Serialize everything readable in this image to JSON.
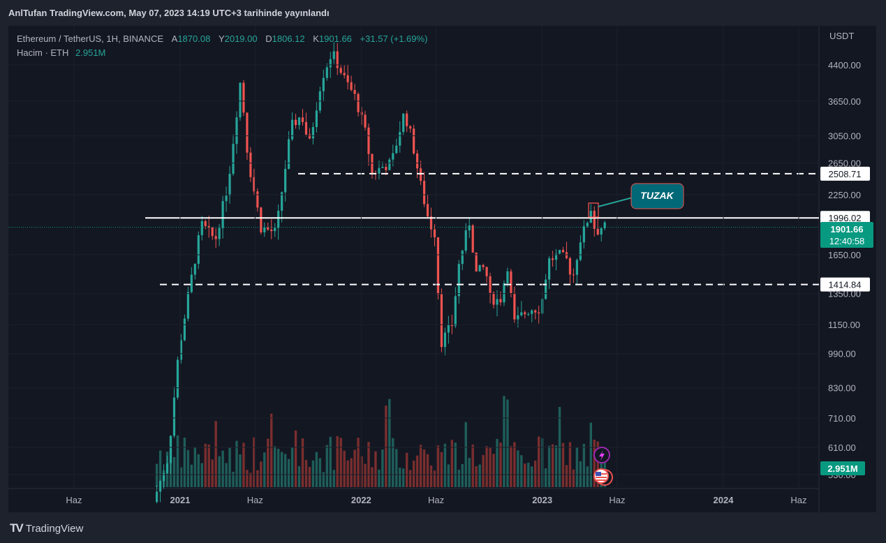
{
  "header": {
    "publish_text": "AnlTufan TradingView.com, May 07, 2023 14:19 UTC+3 tarihinde yayınlandı"
  },
  "legend": {
    "symbol": "Ethereum / TetherUS, 1H, BINANCE",
    "open_label": "A",
    "open": "1870.08",
    "high_label": "Y",
    "high": "2019.00",
    "low_label": "D",
    "low": "1806.12",
    "close_label": "K",
    "close": "1901.66",
    "change": "+31.57 (+1.69%)",
    "volume_label": "Hacim · ETH",
    "volume": "2.951M"
  },
  "chart_data": {
    "type": "candlestick",
    "currency": "USDT",
    "y_scale": "log",
    "y_ticks": [
      "4400.00",
      "3650.00",
      "3050.00",
      "2650.00",
      "2250.00",
      "1650.00",
      "1350.00",
      "1150.00",
      "990.00",
      "830.00",
      "710.00",
      "610.00",
      "530.00"
    ],
    "x_ticks": [
      "Haz",
      "2021",
      "Haz",
      "2022",
      "Haz",
      "2023",
      "Haz",
      "2024",
      "Haz"
    ],
    "levels": [
      {
        "price": 2508.71,
        "label": "2508.71",
        "style": "dashed"
      },
      {
        "price": 1996.02,
        "label": "1996.02",
        "style": "solid"
      },
      {
        "price": 1414.84,
        "label": "1414.84",
        "style": "dashed"
      }
    ],
    "last_price": {
      "label": "1901.66",
      "countdown": "12:40:58"
    },
    "volume_badge": "2.951M",
    "annotation": "TUZAK",
    "path_points": [
      {
        "date": "2020-11-15",
        "price": 460
      },
      {
        "date": "2020-12-15",
        "price": 580
      },
      {
        "date": "2021-01-05",
        "price": 1000
      },
      {
        "date": "2021-01-25",
        "price": 1350
      },
      {
        "date": "2021-02-20",
        "price": 1930
      },
      {
        "date": "2021-03-20",
        "price": 1780
      },
      {
        "date": "2021-04-15",
        "price": 2400
      },
      {
        "date": "2021-05-10",
        "price": 4100
      },
      {
        "date": "2021-05-25",
        "price": 2700
      },
      {
        "date": "2021-06-20",
        "price": 1900
      },
      {
        "date": "2021-07-20",
        "price": 1850
      },
      {
        "date": "2021-08-20",
        "price": 3200
      },
      {
        "date": "2021-09-10",
        "price": 3400
      },
      {
        "date": "2021-09-25",
        "price": 2900
      },
      {
        "date": "2021-10-20",
        "price": 4100
      },
      {
        "date": "2021-11-10",
        "price": 4700
      },
      {
        "date": "2021-12-05",
        "price": 4100
      },
      {
        "date": "2021-12-28",
        "price": 3700
      },
      {
        "date": "2022-01-20",
        "price": 3000
      },
      {
        "date": "2022-01-28",
        "price": 2500
      },
      {
        "date": "2022-02-20",
        "price": 2600
      },
      {
        "date": "2022-03-10",
        "price": 2650
      },
      {
        "date": "2022-04-05",
        "price": 3450
      },
      {
        "date": "2022-04-20",
        "price": 3000
      },
      {
        "date": "2022-05-10",
        "price": 2300
      },
      {
        "date": "2022-05-25",
        "price": 1950
      },
      {
        "date": "2022-06-05",
        "price": 1850
      },
      {
        "date": "2022-06-18",
        "price": 1050
      },
      {
        "date": "2022-07-10",
        "price": 1150
      },
      {
        "date": "2022-07-25",
        "price": 1600
      },
      {
        "date": "2022-08-14",
        "price": 1950
      },
      {
        "date": "2022-08-28",
        "price": 1500
      },
      {
        "date": "2022-09-15",
        "price": 1550
      },
      {
        "date": "2022-09-25",
        "price": 1320
      },
      {
        "date": "2022-10-15",
        "price": 1300
      },
      {
        "date": "2022-11-01",
        "price": 1600
      },
      {
        "date": "2022-11-10",
        "price": 1150
      },
      {
        "date": "2022-11-25",
        "price": 1200
      },
      {
        "date": "2022-12-15",
        "price": 1250
      },
      {
        "date": "2023-01-05",
        "price": 1250
      },
      {
        "date": "2023-01-20",
        "price": 1600
      },
      {
        "date": "2023-02-10",
        "price": 1650
      },
      {
        "date": "2023-02-28",
        "price": 1600
      },
      {
        "date": "2023-03-10",
        "price": 1450
      },
      {
        "date": "2023-03-25",
        "price": 1780
      },
      {
        "date": "2023-04-05",
        "price": 1900
      },
      {
        "date": "2023-04-16",
        "price": 2100
      },
      {
        "date": "2023-04-25",
        "price": 1850
      },
      {
        "date": "2023-05-07",
        "price": 1901.66
      }
    ]
  },
  "brand": {
    "name": "TradingView",
    "logo": "TV"
  },
  "colors": {
    "up": "#26a69a",
    "down": "#ef5350",
    "background": "#131722",
    "accent": "#089981"
  }
}
